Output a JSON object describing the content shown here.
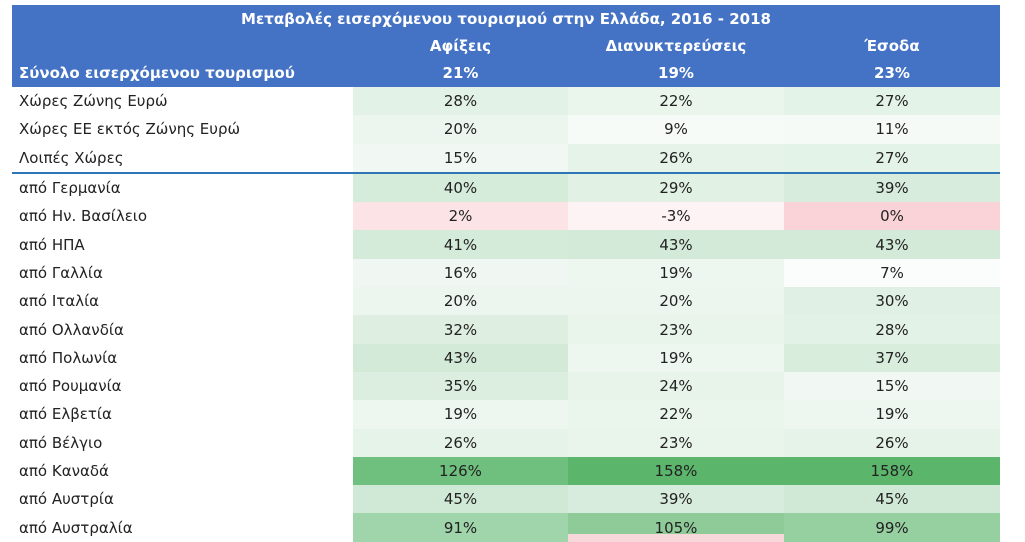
{
  "chart_data": {
    "type": "table",
    "title": "Μεταβολές εισερχόμενου τουρισμού στην Ελλάδα, 2016 - 2018",
    "columns": [
      "",
      "Αφίξεις",
      "Διανυκτερεύσεις",
      "Έσοδα"
    ],
    "total_row": {
      "label": "Σύνολο εισερχόμενου τουρισμού",
      "values": [
        "21%",
        "19%",
        "23%"
      ]
    },
    "rows": [
      {
        "label": "Χώρες Ζώνης Ευρώ",
        "values": [
          "28%",
          "22%",
          "27%"
        ],
        "colors": [
          "#e3f2e6",
          "#eaf5ec",
          "#e4f3e7"
        ]
      },
      {
        "label": "Χώρες ΕΕ εκτός Ζώνης Ευρώ",
        "values": [
          "20%",
          "9%",
          "11%"
        ],
        "colors": [
          "#ecf6ee",
          "#f7fbf8",
          "#f6faf7"
        ]
      },
      {
        "label": "Λοιπές Χώρες",
        "values": [
          "15%",
          "26%",
          "27%"
        ],
        "colors": [
          "#f1f8f3",
          "#e5f3e8",
          "#e4f3e7"
        ]
      },
      {
        "label": "από Γερμανία",
        "values": [
          "40%",
          "29%",
          "39%"
        ],
        "colors": [
          "#d6ecdb",
          "#e1f1e4",
          "#d7ecdc"
        ]
      },
      {
        "label": "από Ην. Βασίλειο",
        "values": [
          "2%",
          "-3%",
          "0%"
        ],
        "colors": [
          "#fce4e6",
          "#fdf2f4",
          "#f9d3d7"
        ]
      },
      {
        "label": "από ΗΠΑ",
        "values": [
          "41%",
          "43%",
          "43%"
        ],
        "colors": [
          "#d5ebda",
          "#d3ead8",
          "#d3ead8"
        ]
      },
      {
        "label": "από Γαλλία",
        "values": [
          "16%",
          "19%",
          "7%"
        ],
        "colors": [
          "#f0f7f2",
          "#edf6ef",
          "#fbfdfc"
        ]
      },
      {
        "label": "από Ιταλία",
        "values": [
          "20%",
          "20%",
          "30%"
        ],
        "colors": [
          "#ecf6ee",
          "#ecf6ee",
          "#e0f0e4"
        ]
      },
      {
        "label": "από Ολλανδία",
        "values": [
          "32%",
          "23%",
          "28%"
        ],
        "colors": [
          "#deefe2",
          "#e9f4eb",
          "#e3f2e6"
        ]
      },
      {
        "label": "από Πολωνία",
        "values": [
          "43%",
          "19%",
          "37%"
        ],
        "colors": [
          "#d3ead8",
          "#edf6ef",
          "#d9eddd"
        ]
      },
      {
        "label": "από Ρουμανία",
        "values": [
          "35%",
          "24%",
          "15%"
        ],
        "colors": [
          "#dbeedf",
          "#e8f4ea",
          "#f1f8f3"
        ]
      },
      {
        "label": "από Ελβετία",
        "values": [
          "19%",
          "22%",
          "19%"
        ],
        "colors": [
          "#edf6ef",
          "#eaf5ec",
          "#edf6ef"
        ]
      },
      {
        "label": "από Βέλγιο",
        "values": [
          "26%",
          "23%",
          "26%"
        ],
        "colors": [
          "#e5f3e8",
          "#e9f4eb",
          "#e5f3e8"
        ]
      },
      {
        "label": "από Καναδά",
        "values": [
          "126%",
          "158%",
          "158%"
        ],
        "colors": [
          "#6fbf7e",
          "#5bb56b",
          "#5bb56b"
        ]
      },
      {
        "label": "από Αυστρία",
        "values": [
          "45%",
          "39%",
          "45%"
        ],
        "colors": [
          "#d0e9d6",
          "#d7ecdc",
          "#d0e9d6"
        ]
      },
      {
        "label": "από Αυστραλία",
        "values": [
          "91%",
          "105%",
          "99%"
        ],
        "colors": [
          "#a0d4aa",
          "#8ecb99",
          "#96cfa0"
        ]
      }
    ]
  }
}
